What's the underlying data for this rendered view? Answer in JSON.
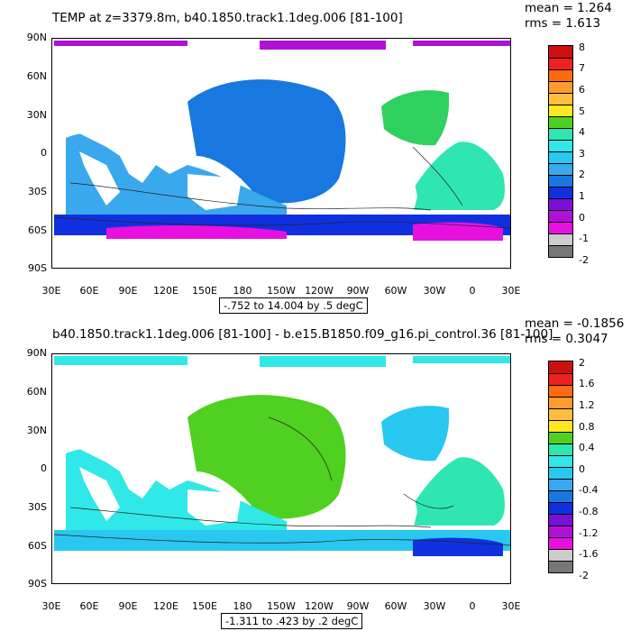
{
  "panels": [
    {
      "title": "TEMP at z=3379.8m, b40.1850.track1.1deg.006 [81-100]",
      "stats": {
        "mean": "mean = 1.264",
        "rms": "rms = 1.613"
      },
      "range_label": "-.752 to 14.004 by .5 degC",
      "lat_labels": [
        "90N",
        "60N",
        "30N",
        "0",
        "30S",
        "60S",
        "90S"
      ],
      "lon_labels": [
        "30E",
        "60E",
        "90E",
        "120E",
        "150E",
        "180",
        "150W",
        "120W",
        "90W",
        "60W",
        "30W",
        "0",
        "30E"
      ],
      "colorbar": {
        "labels": [
          "8",
          "7",
          "6",
          "5",
          "4",
          "3",
          "2",
          "1",
          "0",
          "-1",
          "-2"
        ],
        "colors": [
          "#cc1010",
          "#f02020",
          "#ff6a10",
          "#ff9a30",
          "#ffbe40",
          "#ffe820",
          "#50d020",
          "#30e6b0",
          "#30e8e8",
          "#28c8f0",
          "#3aa8ec",
          "#1878e0",
          "#1030e0",
          "#7a10d8",
          "#b010d8",
          "#e810e0",
          "#cccccc",
          "#777777"
        ]
      },
      "regions": [
        {
          "name": "arctic-strip",
          "color": "#b010d8"
        },
        {
          "name": "atlantic-north",
          "color": "#30d060"
        },
        {
          "name": "pacific",
          "color": "#1878e0"
        },
        {
          "name": "indian-ocean",
          "color": "#3aa8ec"
        },
        {
          "name": "southern-ocean",
          "color": "#1030e0"
        },
        {
          "name": "south-atlantic",
          "color": "#30e6b0"
        },
        {
          "name": "antarctic-shelf",
          "color": "#e810e0"
        }
      ]
    },
    {
      "title": "b40.1850.track1.1deg.006 [81-100] - b.e15.B1850.f09_g16.pi_control.36 [81-100]",
      "stats": {
        "mean": "mean = -0.1856",
        "rms": "rms = 0.3047"
      },
      "range_label": "-1.311 to .423 by .2 degC",
      "lat_labels": [
        "90N",
        "60N",
        "30N",
        "0",
        "30S",
        "60S",
        "90S"
      ],
      "lon_labels": [
        "30E",
        "60E",
        "90E",
        "120E",
        "150E",
        "180",
        "150W",
        "120W",
        "90W",
        "60W",
        "30W",
        "0",
        "30E"
      ],
      "colorbar": {
        "labels": [
          "2",
          "1.6",
          "1.2",
          "0.8",
          "0.4",
          "0",
          "-0.4",
          "-0.8",
          "-1.2",
          "-1.6",
          "-2"
        ],
        "colors": [
          "#cc1010",
          "#f02020",
          "#ff6a10",
          "#ff9a30",
          "#ffbe40",
          "#ffe820",
          "#50d020",
          "#30e6b0",
          "#30e8e8",
          "#28c8f0",
          "#3aa8ec",
          "#1878e0",
          "#1030e0",
          "#7a10d8",
          "#b010d8",
          "#e810e0",
          "#cccccc",
          "#777777"
        ]
      },
      "regions": [
        {
          "name": "arctic-strip",
          "color": "#30e8e8"
        },
        {
          "name": "atlantic-north",
          "color": "#28c8f0"
        },
        {
          "name": "pacific",
          "color": "#50d020"
        },
        {
          "name": "indian-ocean",
          "color": "#30e8e8"
        },
        {
          "name": "southern-ocean",
          "color": "#28c8f0"
        },
        {
          "name": "south-atlantic",
          "color": "#30e6b0"
        },
        {
          "name": "antarctic-shelf",
          "color": "#1030e0"
        }
      ]
    }
  ]
}
